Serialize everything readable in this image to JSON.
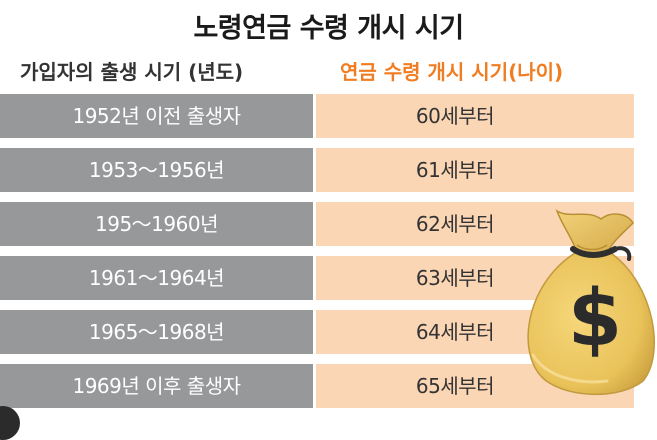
{
  "title": "노령연금 수령 개시 시기",
  "headers": {
    "left": "가입자의 출생 시기 (년도)",
    "right": "연금 수령 개시 시기(나이)"
  },
  "rows": [
    {
      "birth": "1952년 이전  출생자",
      "age": "60세부터"
    },
    {
      "birth": "1953～1956년",
      "age": "61세부터"
    },
    {
      "birth": "195～1960년",
      "age": "62세부터"
    },
    {
      "birth": "1961～1964년",
      "age": "63세부터"
    },
    {
      "birth": "1965～1968년",
      "age": "64세부터"
    },
    {
      "birth": "1969년 이후 출생자",
      "age": "65세부터"
    }
  ],
  "icons": {
    "bag": "money-bag-icon",
    "symbol": "$"
  },
  "colors": {
    "left_cell": "#969899",
    "right_cell": "#fbd6b4",
    "accent": "#f07d22",
    "bag": "#e9c25a"
  }
}
